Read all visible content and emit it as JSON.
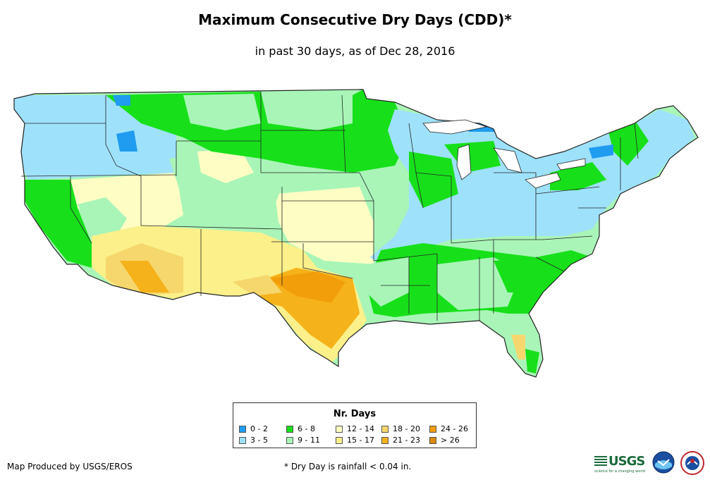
{
  "title": "Maximum Consecutive Dry Days (CDD)*",
  "subtitle": "in past 30 days, as of Dec 28, 2016",
  "legend": {
    "title": "Nr. Days",
    "items": [
      {
        "label": "0 - 2",
        "color": "#1f9cf0"
      },
      {
        "label": "3 - 5",
        "color": "#9ee1fb"
      },
      {
        "label": "6 - 8",
        "color": "#17e01a"
      },
      {
        "label": "9 - 11",
        "color": "#a9f5b8"
      },
      {
        "label": "12 - 14",
        "color": "#fdfdc4"
      },
      {
        "label": "15 - 17",
        "color": "#fbf08a"
      },
      {
        "label": "18 - 20",
        "color": "#f6d76d"
      },
      {
        "label": "21 - 23",
        "color": "#f6b21a"
      },
      {
        "label": "24 - 26",
        "color": "#f29e0b"
      },
      {
        "label": "> 26",
        "color": "#d98a08"
      }
    ]
  },
  "credit": "Map Produced by USGS/EROS",
  "footnote": "* Dry Day is rainfall < 0.04 in.",
  "logos": {
    "usgs": "USGS",
    "usgs_tagline": "science for a changing world",
    "noaa": "NOAA",
    "nws": "National Weather Service"
  }
}
